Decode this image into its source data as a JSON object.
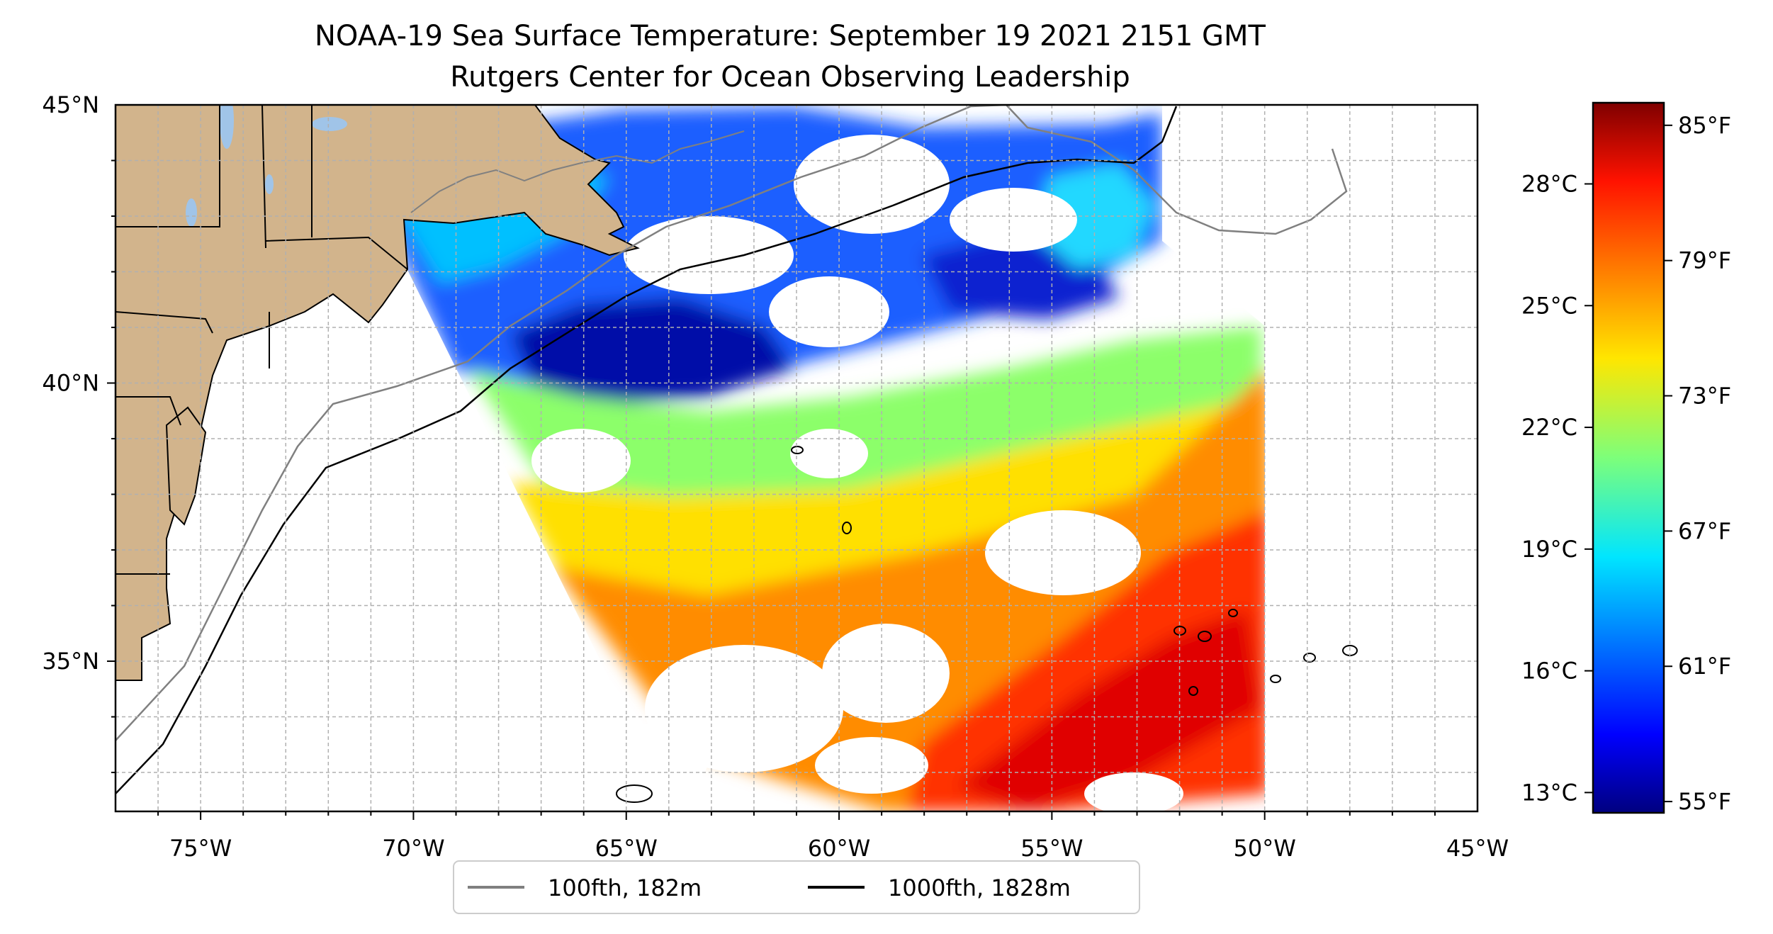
{
  "title": {
    "line1": "NOAA-19 Sea Surface Temperature: September 19 2021 2151 GMT",
    "line2": "Rutgers Center for Ocean Observing Leadership"
  },
  "map": {
    "lon_range": [
      -77,
      -45
    ],
    "lat_range": [
      32.3,
      45
    ],
    "lon_ticks": [
      "75°W",
      "70°W",
      "65°W",
      "60°W",
      "55°W",
      "50°W",
      "45°W"
    ],
    "lat_ticks": [
      "35°N",
      "40°N",
      "45°N"
    ],
    "grid": true,
    "colors": {
      "land": "#d2b48c",
      "lakes": "#a0c4e8",
      "isobath_100fth": "#808080",
      "isobath_1000fth": "#000000",
      "no_data": "#ffffff"
    }
  },
  "legend": {
    "placement": "bottom-center",
    "entries": [
      {
        "label": "100fth, 182m",
        "color": "#808080"
      },
      {
        "label": "1000fth, 1828m",
        "color": "#000000"
      }
    ]
  },
  "colorbar": {
    "colormap": "jet",
    "range_f": [
      54.5,
      86
    ],
    "celsius_ticks": [
      "28°C",
      "25°C",
      "22°C",
      "19°C",
      "16°C",
      "13°C"
    ],
    "fahrenheit_ticks": [
      "85°F",
      "79°F",
      "73°F",
      "67°F",
      "61°F",
      "55°F"
    ]
  }
}
